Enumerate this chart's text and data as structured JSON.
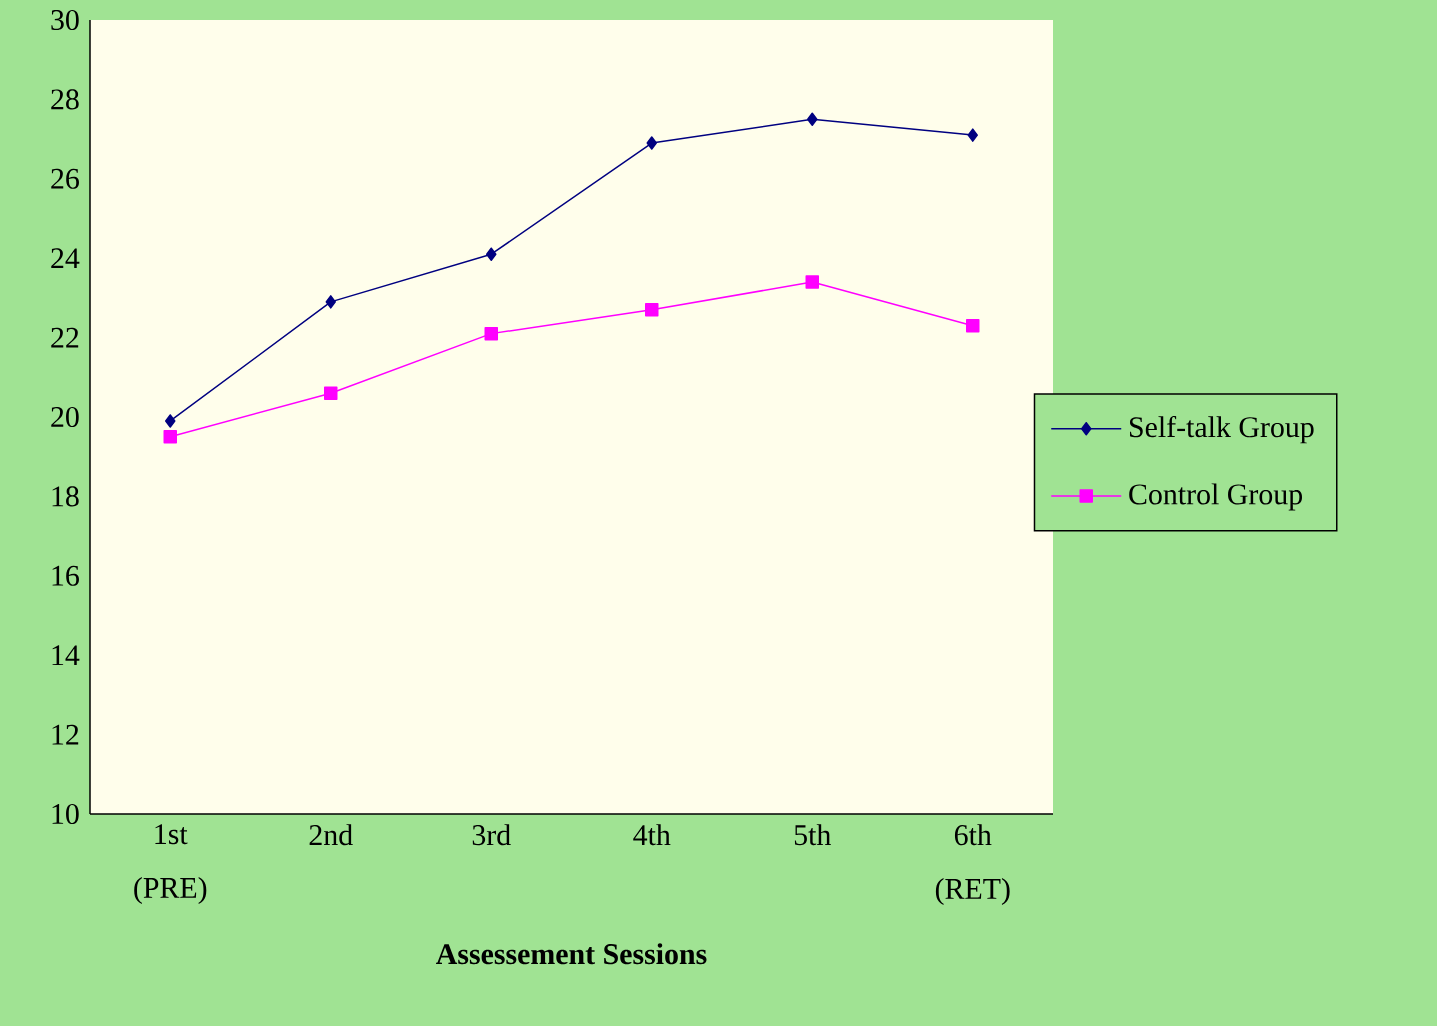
{
  "chart_data": {
    "type": "line",
    "xlabel": "Assessement Sessions",
    "categories": [
      "1st (PRE)",
      "2nd",
      "3rd",
      "4th",
      "5th",
      "6th (RET)"
    ],
    "series": [
      {
        "name": "Self-talk Group",
        "color": "#000080",
        "marker": "diamond",
        "values": [
          19.9,
          22.9,
          24.1,
          26.9,
          27.5,
          27.1
        ]
      },
      {
        "name": "Control Group",
        "color": "#ff00ff",
        "marker": "square",
        "values": [
          19.5,
          20.6,
          22.1,
          22.7,
          23.4,
          22.3
        ]
      }
    ],
    "ylim": [
      10,
      30
    ],
    "yticks": [
      10,
      12,
      14,
      16,
      18,
      20,
      22,
      24,
      26,
      28,
      30
    ],
    "grid": false,
    "legend": "right",
    "line_style": "solid"
  }
}
